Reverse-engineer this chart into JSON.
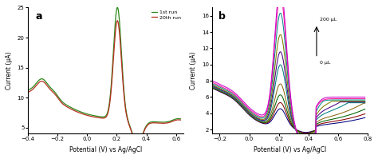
{
  "panel_a": {
    "label": "a",
    "xlabel": "Potential (V) vs Ag/AgCl",
    "ylabel": "Current (μA)",
    "xlim": [
      -0.4,
      0.65
    ],
    "ylim": [
      4,
      25
    ],
    "yticks": [
      5,
      10,
      15,
      20,
      25
    ],
    "xticks": [
      -0.4,
      -0.2,
      0.0,
      0.2,
      0.4,
      0.6
    ],
    "legend": [
      "1st run",
      "20th run"
    ],
    "colors": [
      "#2a8a1a",
      "#b83020"
    ]
  },
  "panel_b": {
    "label": "b",
    "xlabel": "Potential (V) vs Ag/AgCl",
    "ylabel": "Current (μA)",
    "xlim": [
      -0.25,
      0.8
    ],
    "ylim": [
      1.5,
      17
    ],
    "yticks": [
      2,
      4,
      6,
      8,
      10,
      12,
      14,
      16
    ],
    "xticks": [
      -0.2,
      0.0,
      0.2,
      0.4,
      0.6,
      0.8
    ],
    "annotation_top": "200 μL",
    "annotation_bot": "0 μL",
    "peak_heights": [
      2.3,
      3.0,
      3.9,
      5.2,
      7.5,
      9.0,
      11.0,
      13.5,
      15.5,
      16.5
    ],
    "bases": [
      2.1,
      2.15,
      2.2,
      2.25,
      2.3,
      2.4,
      2.5,
      2.65,
      2.8,
      3.0
    ],
    "curve_colors": [
      "#000080",
      "#8b0000",
      "#006400",
      "#8b6914",
      "#008080",
      "#4b0082",
      "#808000",
      "#008b8b",
      "#ff1493",
      "#cc00cc"
    ]
  },
  "bg_color": "#ffffff"
}
